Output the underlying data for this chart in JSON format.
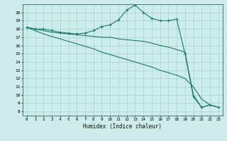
{
  "xlabel": "Humidex (Indice chaleur)",
  "xlim": [
    -0.5,
    23.5
  ],
  "ylim": [
    7.5,
    21.0
  ],
  "xticks": [
    0,
    1,
    2,
    3,
    4,
    5,
    6,
    7,
    8,
    9,
    10,
    11,
    12,
    13,
    14,
    15,
    16,
    17,
    18,
    19,
    20,
    21,
    22,
    23
  ],
  "yticks": [
    8,
    9,
    10,
    11,
    12,
    13,
    14,
    15,
    16,
    17,
    18,
    19,
    20
  ],
  "line_color": "#1a7a6e",
  "bg_color": "#ceecea",
  "grid_color": "#a8d8d4",
  "line1_x": [
    0,
    1,
    2,
    3,
    4,
    5,
    6,
    7,
    8,
    9,
    10,
    11,
    12,
    13,
    14,
    15,
    16,
    17,
    18,
    19,
    20,
    21,
    22,
    23
  ],
  "line1_y": [
    18.2,
    18.0,
    18.0,
    17.8,
    17.6,
    17.5,
    17.4,
    17.5,
    17.8,
    18.3,
    18.5,
    19.1,
    20.3,
    20.9,
    20.0,
    19.3,
    19.0,
    19.0,
    19.2,
    15.0,
    9.8,
    8.5,
    8.8,
    8.5
  ],
  "line2_x": [
    0,
    1,
    2,
    3,
    4,
    5,
    6,
    7,
    8,
    9,
    10,
    11,
    12,
    13,
    14,
    15,
    16,
    17,
    18,
    19,
    20,
    21,
    22,
    23
  ],
  "line2_y": [
    18.2,
    18.0,
    17.8,
    17.6,
    17.5,
    17.4,
    17.3,
    17.2,
    17.1,
    17.0,
    17.0,
    16.8,
    16.7,
    16.6,
    16.5,
    16.3,
    16.0,
    15.8,
    15.5,
    15.2,
    10.0,
    8.5,
    8.8,
    8.5
  ],
  "line3_x": [
    0,
    1,
    2,
    3,
    4,
    5,
    6,
    7,
    8,
    9,
    10,
    11,
    12,
    13,
    14,
    15,
    16,
    17,
    18,
    19,
    20,
    21,
    22,
    23
  ],
  "line3_y": [
    18.2,
    17.8,
    17.4,
    17.1,
    16.8,
    16.5,
    16.2,
    15.9,
    15.6,
    15.2,
    14.9,
    14.6,
    14.3,
    14.0,
    13.7,
    13.4,
    13.0,
    12.7,
    12.4,
    12.0,
    11.0,
    9.5,
    8.8,
    8.5
  ]
}
